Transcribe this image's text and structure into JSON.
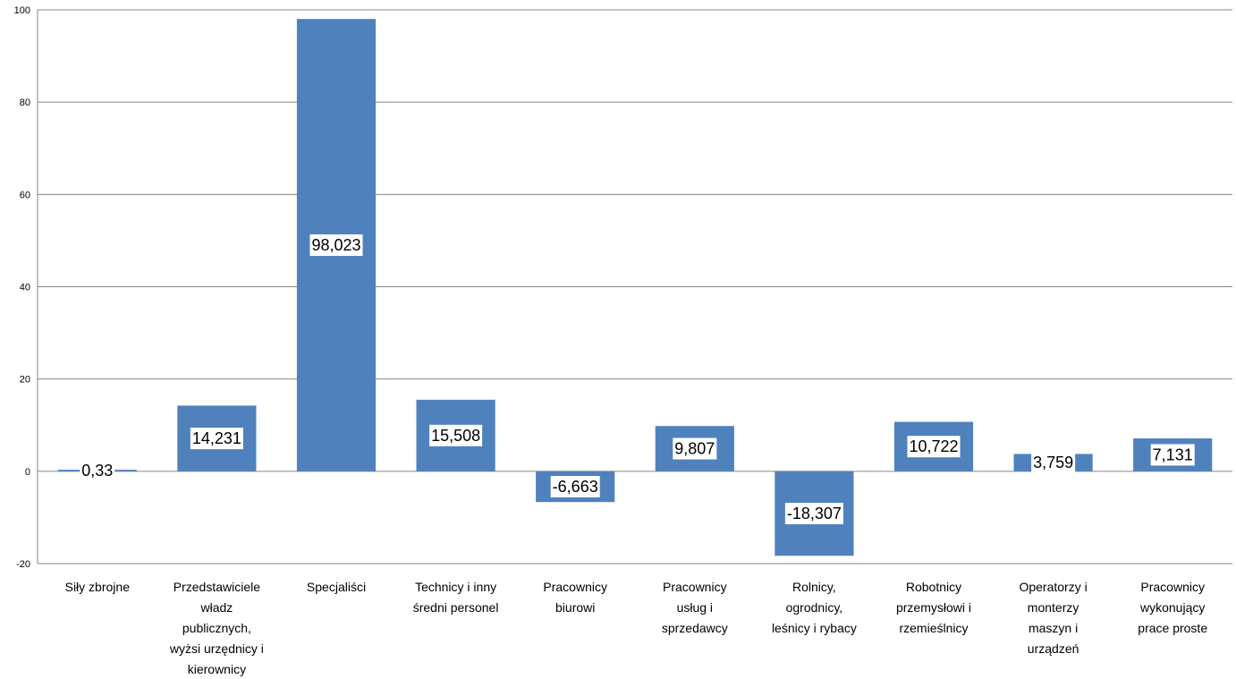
{
  "chart_data": {
    "type": "bar",
    "title": "",
    "xlabel": "",
    "ylabel": "",
    "ylim": [
      -20,
      100
    ],
    "yticks": [
      -20,
      0,
      20,
      40,
      60,
      80,
      100
    ],
    "grid": true,
    "legend": "none",
    "bar_color": "#4f81bd",
    "categories": [
      [
        "Siły zbrojne"
      ],
      [
        "Przedstawiciele",
        "władz",
        "publicznych,",
        "wyżsi urzędnicy i",
        "kierownicy"
      ],
      [
        "Specjaliści"
      ],
      [
        "Technicy i inny",
        "średni personel"
      ],
      [
        "Pracownicy",
        "biurowi"
      ],
      [
        "Pracownicy",
        "usług i",
        "sprzedawcy"
      ],
      [
        "Rolnicy,",
        "ogrodnicy,",
        "leśnicy i rybacy"
      ],
      [
        "Robotnicy",
        "przemysłowi i",
        "rzemieślnicy"
      ],
      [
        "Operatorzy i",
        "monterzy",
        "maszyn i",
        "urządzeń"
      ],
      [
        "Pracownicy",
        "wykonujący",
        "prace proste"
      ]
    ],
    "values": [
      0.33,
      14.231,
      98.023,
      15.508,
      -6.663,
      9.807,
      -18.307,
      10.722,
      3.759,
      7.131
    ],
    "data_labels": [
      "0,33",
      "14,231",
      "98,023",
      "15,508",
      "-6,663",
      "9,807",
      "-18,307",
      "10,722",
      "3,759",
      "7,131"
    ]
  }
}
